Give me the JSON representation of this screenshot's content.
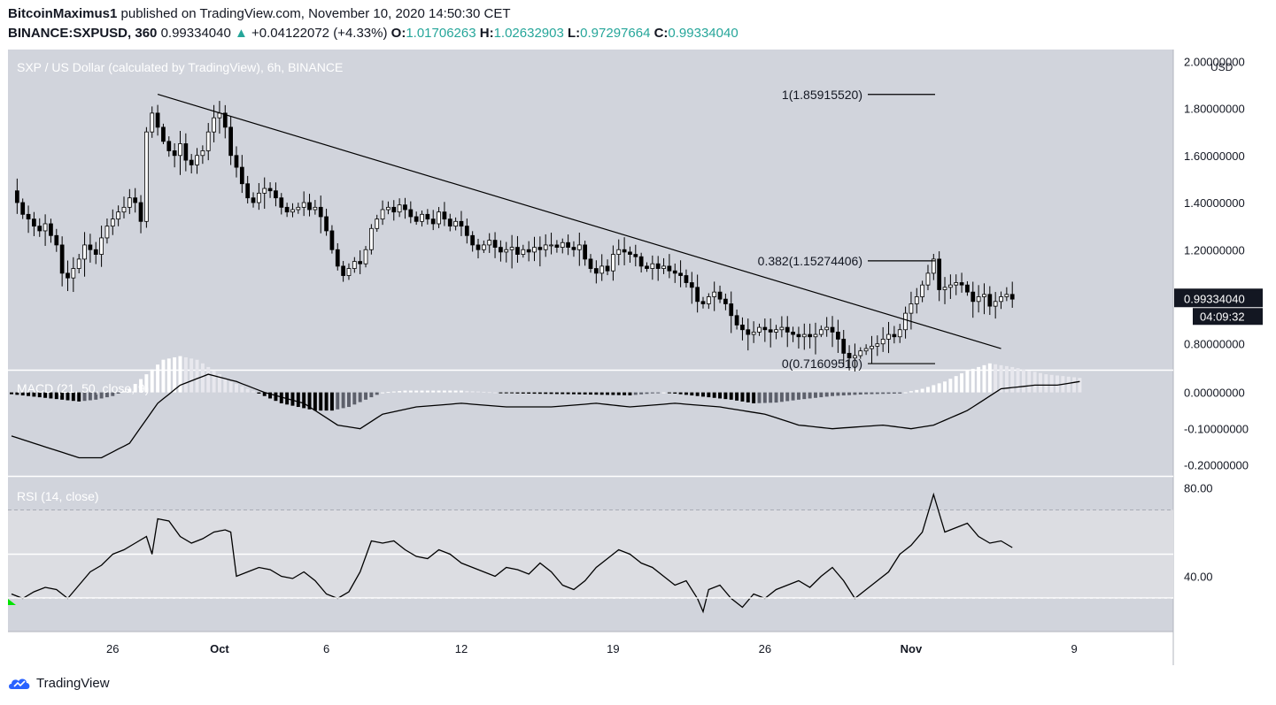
{
  "header": {
    "author": "BitcoinMaximus1",
    "published": " published on TradingView.com, November 10, 2020 14:50:30 CET",
    "symbol": "BINANCE:SXPUSD, 360",
    "last": "0.99334040",
    "change_arrow": "▲",
    "change": "+0.04122072 (+4.33%)",
    "o_label": "O:",
    "o": "1.01706263",
    "h_label": "H:",
    "h": "1.02632903",
    "l_label": "L:",
    "l": "0.97297664",
    "c_label": "C:",
    "c": "0.99334040"
  },
  "footer": {
    "brand": "TradingView"
  },
  "colors": {
    "pane_bg": "#d1d4dc",
    "line": "#000000",
    "bull": "#ffffff",
    "bear": "#000000",
    "rsi_band": "#dcdde2",
    "up_text": "#26a69a",
    "marker": "#00e400"
  },
  "chart_data": [
    {
      "type": "candlestick",
      "title": "SXP / US Dollar (calculated by TradingView), 6h, BINANCE",
      "ylabel": "USD",
      "ylim": [
        0.69,
        2.05
      ],
      "y_ticks": [
        "2.00000000",
        "1.80000000",
        "1.60000000",
        "1.40000000",
        "1.20000000",
        "0.80000000"
      ],
      "x_ticks": [
        "26",
        "Oct",
        "6",
        "12",
        "19",
        "26",
        "Nov",
        "9"
      ],
      "x_tick_index": [
        18,
        37,
        56,
        80,
        107,
        134,
        160,
        189
      ],
      "last_price_label": "0.99334040",
      "countdown": "04:09:32",
      "close_path": [
        [
          0,
          1.45
        ],
        [
          1,
          1.4
        ],
        [
          2,
          1.35
        ],
        [
          3,
          1.33
        ],
        [
          4,
          1.3
        ],
        [
          5,
          1.28
        ],
        [
          6,
          1.31
        ],
        [
          7,
          1.26
        ],
        [
          8,
          1.22
        ],
        [
          9,
          1.1
        ],
        [
          10,
          1.08
        ],
        [
          11,
          1.12
        ],
        [
          12,
          1.16
        ],
        [
          13,
          1.22
        ],
        [
          14,
          1.2
        ],
        [
          15,
          1.18
        ],
        [
          16,
          1.25
        ],
        [
          17,
          1.3
        ],
        [
          18,
          1.33
        ],
        [
          19,
          1.36
        ],
        [
          20,
          1.38
        ],
        [
          21,
          1.42
        ],
        [
          22,
          1.4
        ],
        [
          23,
          1.32
        ],
        [
          24,
          1.7
        ],
        [
          25,
          1.78
        ],
        [
          26,
          1.72
        ],
        [
          27,
          1.66
        ],
        [
          28,
          1.62
        ],
        [
          29,
          1.6
        ],
        [
          30,
          1.65
        ],
        [
          31,
          1.58
        ],
        [
          32,
          1.56
        ],
        [
          33,
          1.6
        ],
        [
          34,
          1.62
        ],
        [
          35,
          1.7
        ],
        [
          36,
          1.76
        ],
        [
          37,
          1.78
        ],
        [
          38,
          1.72
        ],
        [
          39,
          1.6
        ],
        [
          40,
          1.55
        ],
        [
          41,
          1.48
        ],
        [
          42,
          1.42
        ],
        [
          43,
          1.4
        ],
        [
          44,
          1.44
        ],
        [
          45,
          1.46
        ],
        [
          46,
          1.45
        ],
        [
          47,
          1.42
        ],
        [
          48,
          1.38
        ],
        [
          49,
          1.36
        ],
        [
          50,
          1.37
        ],
        [
          51,
          1.38
        ],
        [
          52,
          1.4
        ],
        [
          53,
          1.37
        ],
        [
          54,
          1.38
        ],
        [
          55,
          1.34
        ],
        [
          56,
          1.28
        ],
        [
          57,
          1.2
        ],
        [
          58,
          1.13
        ],
        [
          59,
          1.09
        ],
        [
          60,
          1.12
        ],
        [
          61,
          1.15
        ],
        [
          62,
          1.14
        ],
        [
          63,
          1.2
        ],
        [
          64,
          1.29
        ],
        [
          65,
          1.33
        ],
        [
          66,
          1.37
        ],
        [
          67,
          1.38
        ],
        [
          68,
          1.36
        ],
        [
          69,
          1.39
        ],
        [
          70,
          1.37
        ],
        [
          71,
          1.34
        ],
        [
          72,
          1.32
        ],
        [
          73,
          1.35
        ],
        [
          74,
          1.33
        ],
        [
          75,
          1.31
        ],
        [
          76,
          1.36
        ],
        [
          77,
          1.33
        ],
        [
          78,
          1.3
        ],
        [
          79,
          1.32
        ],
        [
          80,
          1.3
        ],
        [
          81,
          1.26
        ],
        [
          82,
          1.22
        ],
        [
          83,
          1.2
        ],
        [
          84,
          1.22
        ],
        [
          85,
          1.24
        ],
        [
          86,
          1.21
        ],
        [
          87,
          1.19
        ],
        [
          88,
          1.2
        ],
        [
          89,
          1.21
        ],
        [
          90,
          1.18
        ],
        [
          91,
          1.2
        ],
        [
          92,
          1.19
        ],
        [
          93,
          1.21
        ],
        [
          94,
          1.2
        ],
        [
          95,
          1.22
        ],
        [
          96,
          1.22
        ],
        [
          97,
          1.21
        ],
        [
          98,
          1.23
        ],
        [
          99,
          1.21
        ],
        [
          100,
          1.2
        ],
        [
          101,
          1.22
        ],
        [
          102,
          1.16
        ],
        [
          103,
          1.12
        ],
        [
          104,
          1.1
        ],
        [
          105,
          1.13
        ],
        [
          106,
          1.11
        ],
        [
          107,
          1.18
        ],
        [
          108,
          1.2
        ],
        [
          109,
          1.19
        ],
        [
          110,
          1.18
        ],
        [
          111,
          1.17
        ],
        [
          112,
          1.13
        ],
        [
          113,
          1.12
        ],
        [
          114,
          1.14
        ],
        [
          115,
          1.12
        ],
        [
          116,
          1.13
        ],
        [
          117,
          1.11
        ],
        [
          118,
          1.1
        ],
        [
          119,
          1.09
        ],
        [
          120,
          1.06
        ],
        [
          121,
          1.04
        ],
        [
          122,
          0.98
        ],
        [
          123,
          0.97
        ],
        [
          124,
          1.0
        ],
        [
          125,
          1.02
        ],
        [
          126,
          0.99
        ],
        [
          127,
          0.97
        ],
        [
          128,
          0.92
        ],
        [
          129,
          0.88
        ],
        [
          130,
          0.86
        ],
        [
          131,
          0.84
        ],
        [
          132,
          0.85
        ],
        [
          133,
          0.87
        ],
        [
          134,
          0.86
        ],
        [
          135,
          0.85
        ],
        [
          136,
          0.86
        ],
        [
          137,
          0.87
        ],
        [
          138,
          0.85
        ],
        [
          139,
          0.84
        ],
        [
          140,
          0.83
        ],
        [
          141,
          0.84
        ],
        [
          142,
          0.83
        ],
        [
          143,
          0.84
        ],
        [
          144,
          0.86
        ],
        [
          145,
          0.87
        ],
        [
          146,
          0.85
        ],
        [
          147,
          0.82
        ],
        [
          148,
          0.76
        ],
        [
          149,
          0.74
        ],
        [
          150,
          0.75
        ],
        [
          151,
          0.77
        ],
        [
          152,
          0.78
        ],
        [
          153,
          0.79
        ],
        [
          154,
          0.8
        ],
        [
          155,
          0.82
        ],
        [
          156,
          0.84
        ],
        [
          157,
          0.83
        ],
        [
          158,
          0.86
        ],
        [
          159,
          0.93
        ],
        [
          160,
          0.97
        ],
        [
          161,
          1.0
        ],
        [
          162,
          1.05
        ],
        [
          163,
          1.1
        ],
        [
          164,
          1.16
        ],
        [
          165,
          1.03
        ],
        [
          166,
          1.04
        ],
        [
          167,
          1.05
        ],
        [
          168,
          1.06
        ],
        [
          169,
          1.05
        ],
        [
          170,
          1.02
        ],
        [
          171,
          0.98
        ],
        [
          172,
          1.0
        ],
        [
          173,
          1.01
        ],
        [
          174,
          0.96
        ],
        [
          175,
          0.98
        ],
        [
          176,
          1.0
        ],
        [
          177,
          1.01
        ],
        [
          178,
          0.99
        ]
      ],
      "trendline": [
        [
          26,
          1.86
        ],
        [
          176,
          0.78
        ]
      ],
      "fib_levels": [
        {
          "label": "1(1.85915520)",
          "value": 1.8592
        },
        {
          "label": "0.382(1.15274406)",
          "value": 1.1527
        },
        {
          "label": "0(0.71609510)",
          "value": 0.7161
        }
      ]
    },
    {
      "type": "histogram+line",
      "title": "MACD (21, 50, close, 9)",
      "ylim": [
        -0.23,
        0.06
      ],
      "y_ticks": [
        "0.00000000",
        "-0.10000000",
        "-0.20000000"
      ],
      "macd_line": [
        [
          0,
          -0.12
        ],
        [
          6,
          -0.15
        ],
        [
          12,
          -0.18
        ],
        [
          16,
          -0.18
        ],
        [
          21,
          -0.14
        ],
        [
          26,
          -0.03
        ],
        [
          30,
          0.02
        ],
        [
          35,
          0.05
        ],
        [
          40,
          0.03
        ],
        [
          45,
          0.0
        ],
        [
          52,
          -0.03
        ],
        [
          58,
          -0.09
        ],
        [
          62,
          -0.1
        ],
        [
          66,
          -0.06
        ],
        [
          72,
          -0.04
        ],
        [
          80,
          -0.03
        ],
        [
          88,
          -0.04
        ],
        [
          96,
          -0.04
        ],
        [
          104,
          -0.03
        ],
        [
          110,
          -0.04
        ],
        [
          118,
          -0.03
        ],
        [
          126,
          -0.04
        ],
        [
          134,
          -0.06
        ],
        [
          140,
          -0.09
        ],
        [
          146,
          -0.1
        ],
        [
          155,
          -0.09
        ],
        [
          160,
          -0.1
        ],
        [
          164,
          -0.09
        ],
        [
          170,
          -0.05
        ],
        [
          176,
          0.01
        ],
        [
          182,
          0.02
        ],
        [
          186,
          0.02
        ],
        [
          190,
          0.03
        ]
      ],
      "histogram": [
        [
          0,
          -0.005
        ],
        [
          3,
          -0.01
        ],
        [
          6,
          -0.015
        ],
        [
          9,
          -0.02
        ],
        [
          12,
          -0.025
        ],
        [
          15,
          -0.02
        ],
        [
          18,
          -0.01
        ],
        [
          21,
          0.01
        ],
        [
          24,
          0.05
        ],
        [
          27,
          0.09
        ],
        [
          30,
          0.1
        ],
        [
          33,
          0.09
        ],
        [
          36,
          0.06
        ],
        [
          39,
          0.03
        ],
        [
          42,
          0.01
        ],
        [
          45,
          -0.01
        ],
        [
          48,
          -0.03
        ],
        [
          51,
          -0.04
        ],
        [
          54,
          -0.05
        ],
        [
          57,
          -0.05
        ],
        [
          60,
          -0.04
        ],
        [
          63,
          -0.02
        ],
        [
          66,
          0.0
        ],
        [
          70,
          0.005
        ],
        [
          80,
          0.005
        ],
        [
          90,
          -0.003
        ],
        [
          100,
          -0.005
        ],
        [
          110,
          -0.008
        ],
        [
          116,
          0.0
        ],
        [
          122,
          -0.01
        ],
        [
          128,
          -0.02
        ],
        [
          132,
          -0.03
        ],
        [
          136,
          -0.028
        ],
        [
          140,
          -0.02
        ],
        [
          146,
          -0.01
        ],
        [
          152,
          -0.005
        ],
        [
          158,
          -0.003
        ],
        [
          162,
          0.01
        ],
        [
          166,
          0.03
        ],
        [
          170,
          0.06
        ],
        [
          174,
          0.08
        ],
        [
          178,
          0.07
        ],
        [
          184,
          0.05
        ],
        [
          190,
          0.04
        ]
      ]
    },
    {
      "type": "line",
      "title": "RSI (14, close)",
      "ylim": [
        15,
        85
      ],
      "y_ticks": [
        "80.00",
        "40.00"
      ],
      "bands": [
        30,
        70
      ],
      "midline": 50,
      "rsi": [
        [
          0,
          32
        ],
        [
          2,
          30
        ],
        [
          4,
          33
        ],
        [
          6,
          35
        ],
        [
          8,
          34
        ],
        [
          10,
          30
        ],
        [
          12,
          36
        ],
        [
          14,
          42
        ],
        [
          16,
          45
        ],
        [
          18,
          50
        ],
        [
          20,
          52
        ],
        [
          22,
          55
        ],
        [
          24,
          58
        ],
        [
          25,
          50
        ],
        [
          26,
          66
        ],
        [
          28,
          65
        ],
        [
          30,
          58
        ],
        [
          32,
          55
        ],
        [
          34,
          57
        ],
        [
          36,
          60
        ],
        [
          38,
          61
        ],
        [
          39,
          60
        ],
        [
          40,
          40
        ],
        [
          42,
          42
        ],
        [
          44,
          44
        ],
        [
          46,
          43
        ],
        [
          48,
          40
        ],
        [
          50,
          39
        ],
        [
          52,
          42
        ],
        [
          54,
          38
        ],
        [
          56,
          32
        ],
        [
          58,
          30
        ],
        [
          60,
          33
        ],
        [
          62,
          42
        ],
        [
          64,
          56
        ],
        [
          66,
          55
        ],
        [
          68,
          56
        ],
        [
          70,
          52
        ],
        [
          72,
          49
        ],
        [
          74,
          48
        ],
        [
          76,
          52
        ],
        [
          78,
          50
        ],
        [
          80,
          46
        ],
        [
          82,
          44
        ],
        [
          84,
          42
        ],
        [
          86,
          40
        ],
        [
          88,
          44
        ],
        [
          90,
          43
        ],
        [
          92,
          41
        ],
        [
          94,
          46
        ],
        [
          96,
          42
        ],
        [
          98,
          36
        ],
        [
          100,
          34
        ],
        [
          102,
          38
        ],
        [
          104,
          44
        ],
        [
          106,
          48
        ],
        [
          108,
          52
        ],
        [
          110,
          50
        ],
        [
          112,
          46
        ],
        [
          114,
          44
        ],
        [
          116,
          40
        ],
        [
          118,
          36
        ],
        [
          120,
          38
        ],
        [
          122,
          30
        ],
        [
          123,
          24
        ],
        [
          124,
          34
        ],
        [
          126,
          36
        ],
        [
          128,
          30
        ],
        [
          130,
          26
        ],
        [
          132,
          32
        ],
        [
          134,
          30
        ],
        [
          136,
          34
        ],
        [
          138,
          36
        ],
        [
          140,
          38
        ],
        [
          142,
          35
        ],
        [
          144,
          40
        ],
        [
          146,
          44
        ],
        [
          148,
          38
        ],
        [
          150,
          30
        ],
        [
          152,
          34
        ],
        [
          154,
          38
        ],
        [
          156,
          42
        ],
        [
          158,
          50
        ],
        [
          160,
          54
        ],
        [
          162,
          60
        ],
        [
          164,
          77
        ],
        [
          166,
          60
        ],
        [
          168,
          62
        ],
        [
          170,
          64
        ],
        [
          172,
          58
        ],
        [
          174,
          55
        ],
        [
          176,
          56
        ],
        [
          178,
          53
        ]
      ]
    }
  ]
}
